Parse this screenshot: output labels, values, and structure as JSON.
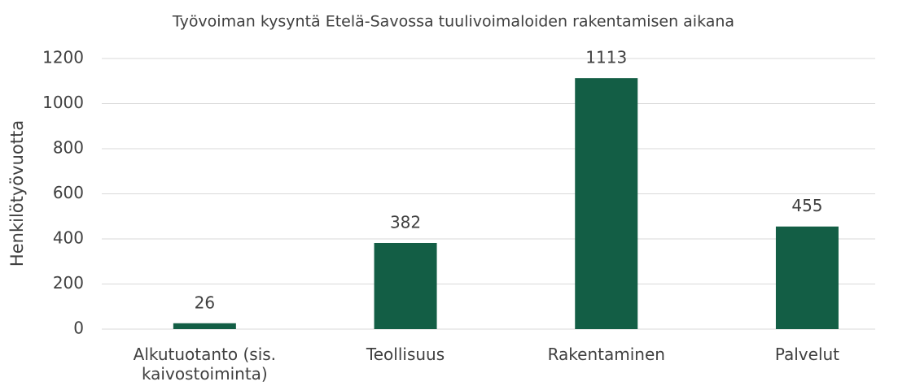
{
  "chart_data": {
    "type": "bar",
    "title": "Työvoiman kysyntä Etelä-Savossa tuulivoimaloiden rakentamisen aikana",
    "y_label": "Henkilötyövuotta",
    "categories": [
      "Alkutuotanto (sis. kaivostoiminta)",
      "Teollisuus",
      "Rakentaminen",
      "Palvelut"
    ],
    "values": [
      26,
      382,
      1113,
      455
    ],
    "color": "#135e45",
    "ylim": [
      0,
      1200
    ],
    "yticks": [
      0,
      200,
      400,
      600,
      800,
      1000,
      1200
    ],
    "grid": true
  }
}
